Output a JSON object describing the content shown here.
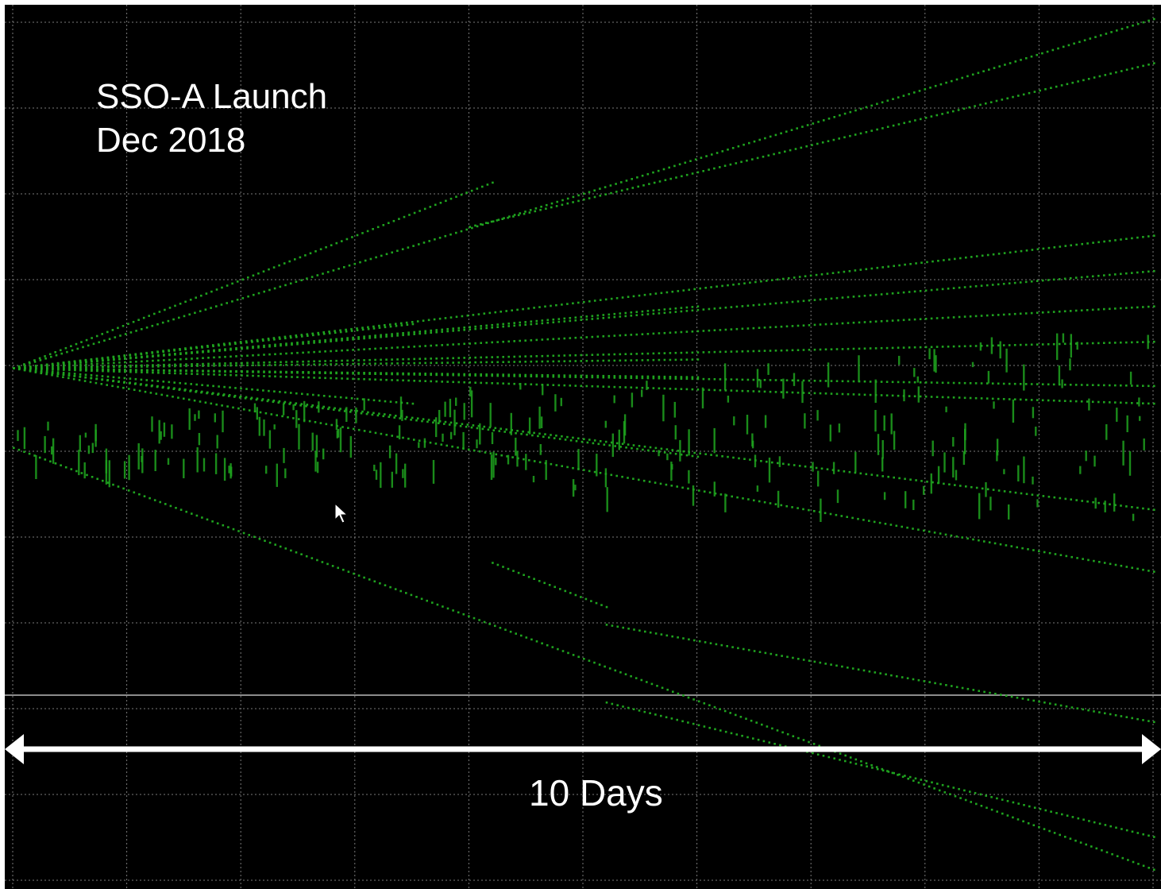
{
  "title": {
    "line1": "SSO-A Launch",
    "line2": "Dec 2018"
  },
  "time_span": {
    "label": "10 Days",
    "value": 10,
    "unit": "days"
  },
  "colors": {
    "background": "#000000",
    "grid": "#7a7a7a",
    "points": "#1fa31f",
    "text": "#ffffff",
    "reference_line": "#8c8c8c"
  },
  "chart_data": {
    "type": "scatter",
    "title": "SSO-A Launch Dec 2018",
    "xlabel": "10 Days",
    "ylabel": "",
    "x_span_days": 10,
    "grid": true,
    "grid_style": "dotted",
    "description_of_series": "",
    "series": [
      {
        "start": [
          0,
          0.5
        ],
        "end": [
          10,
          0.023
        ]
      },
      {
        "start": [
          5.2,
          0.212
        ],
        "end": [
          10,
          0.06
        ]
      },
      {
        "start": [
          5.2,
          0.3
        ],
        "end": [
          10,
          0.19
        ]
      },
      {
        "start": [
          4.2,
          0.37
        ],
        "end": [
          5.2,
          0.32
        ]
      },
      {
        "start": [
          0,
          0.59
        ],
        "end": [
          10,
          0.985
        ]
      },
      {
        "start": [
          4.0,
          0.75
        ],
        "end": [
          10,
          0.935
        ]
      },
      {
        "start": [
          0,
          0.59
        ],
        "end": [
          4.2,
          0.8
        ]
      },
      {
        "start": [
          0,
          0.59
        ],
        "end": [
          10,
          0.36
        ]
      },
      {
        "start": [
          0,
          0.59
        ],
        "end": [
          10,
          0.43
        ]
      },
      {
        "start": [
          0,
          0.59
        ],
        "end": [
          10,
          0.55
        ]
      },
      {
        "start": [
          0,
          0.59
        ],
        "end": [
          10,
          0.57
        ]
      },
      {
        "start": [
          0,
          0.59
        ],
        "end": [
          10,
          0.62
        ]
      },
      {
        "start": [
          0,
          0.59
        ],
        "end": [
          10,
          0.66
        ]
      },
      {
        "start": [
          0,
          0.59
        ],
        "end": [
          10,
          0.7
        ]
      },
      {
        "start": [
          0,
          0.59
        ],
        "end": [
          10,
          0.74
        ]
      },
      {
        "start": [
          0,
          0.59
        ],
        "end": [
          3.5,
          0.64
        ]
      },
      {
        "start": [
          0,
          0.59
        ],
        "end": [
          3.5,
          0.55
        ]
      },
      {
        "start": [
          0,
          0.59
        ],
        "end": [
          6,
          0.66
        ]
      },
      {
        "start": [
          0,
          0.59
        ],
        "end": [
          6,
          0.49
        ]
      },
      {
        "start": [
          0,
          0.59
        ],
        "end": [
          6,
          0.6
        ]
      },
      {
        "start": [
          0,
          0.59
        ],
        "end": [
          6,
          0.58
        ]
      }
    ]
  }
}
